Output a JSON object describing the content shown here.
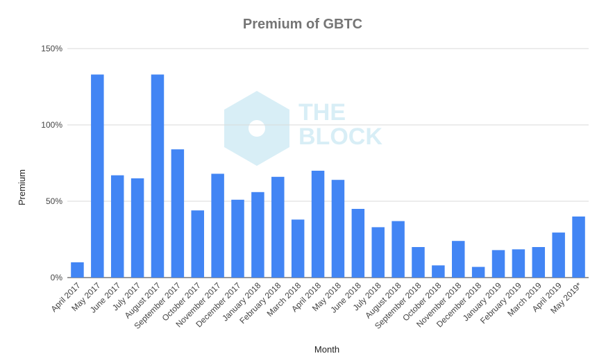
{
  "chart_data": {
    "type": "bar",
    "title": "Premium of GBTC",
    "xlabel": "Month",
    "ylabel": "Premium",
    "ylim": [
      0,
      150
    ],
    "yticks": [
      "0%",
      "50%",
      "100%",
      "150%"
    ],
    "ytick_values": [
      0,
      50,
      100,
      150
    ],
    "grid": true,
    "legend": "none",
    "bar_color": "#4285f4",
    "categories": [
      "April 2017",
      "May 2017",
      "June 2017",
      "July 2017",
      "August 2017",
      "September 2017",
      "October 2017",
      "November 2017",
      "December 2017",
      "January 2018",
      "February 2018",
      "March 2018",
      "April 2018",
      "May 2018",
      "June 2018",
      "July 2018",
      "August 2018",
      "September 2018",
      "October 2018",
      "November 2018",
      "December 2018",
      "January 2019",
      "February 2019",
      "March 2019",
      "April 2019",
      "May 2019*"
    ],
    "values": [
      10,
      133,
      67,
      65,
      133,
      84,
      44,
      68,
      51,
      56,
      66,
      38,
      70,
      64,
      45,
      33,
      37,
      20,
      8,
      24,
      7,
      18,
      18.5,
      20,
      29.5,
      40
    ]
  },
  "watermark": {
    "line1": "THE",
    "line2": "BLOCK",
    "color": "#d8eef6"
  }
}
